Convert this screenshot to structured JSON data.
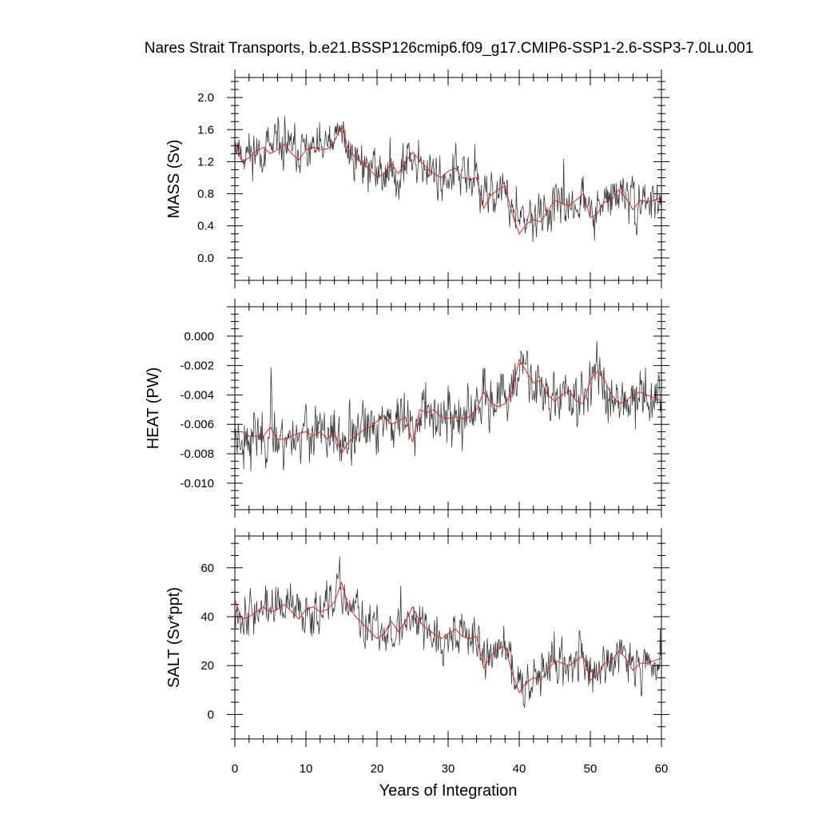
{
  "title": "Nares Strait Transports, b.e21.BSSP126cmip6.f09_g17.CMIP6-SSP1-2.6-SSP3-7.0Lu.001",
  "xlabel": "Years of Integration",
  "colors": {
    "raw": "#3a3a3a",
    "smooth": "#e8201a"
  },
  "chart_data": [
    {
      "type": "line",
      "ylabel": "MASS (Sv)",
      "xlim": [
        0,
        60
      ],
      "ylim": [
        -0.28,
        2.25
      ],
      "x_ticks": [
        0,
        10,
        20,
        30,
        40,
        50,
        60
      ],
      "y_ticks": [
        {
          "v": 0.0,
          "label": "0.0"
        },
        {
          "v": 0.4,
          "label": "0.4"
        },
        {
          "v": 0.8,
          "label": "0.8"
        },
        {
          "v": 1.2,
          "label": "1.2"
        },
        {
          "v": 1.6,
          "label": "1.6"
        },
        {
          "v": 2.0,
          "label": "2.0"
        }
      ],
      "smooth": {
        "x": [
          0,
          1,
          2,
          3,
          4,
          5,
          6,
          7,
          8,
          9,
          10,
          11,
          12,
          13,
          14,
          15,
          16,
          17,
          18,
          19,
          20,
          21,
          22,
          23,
          24,
          25,
          26,
          27,
          28,
          29,
          30,
          31,
          32,
          33,
          34,
          35,
          36,
          37,
          38,
          39,
          40,
          41,
          42,
          43,
          44,
          45,
          46,
          47,
          48,
          49,
          50,
          51,
          52,
          53,
          54,
          55,
          56,
          57,
          58,
          59,
          60
        ],
        "y": [
          1.45,
          1.2,
          1.25,
          1.33,
          1.38,
          1.3,
          1.35,
          1.42,
          1.3,
          1.22,
          1.35,
          1.38,
          1.35,
          1.36,
          1.45,
          1.65,
          1.35,
          1.25,
          1.18,
          1.1,
          1.0,
          1.05,
          1.18,
          1.05,
          1.2,
          1.32,
          1.22,
          1.12,
          1.05,
          1.0,
          1.08,
          1.12,
          1.0,
          0.98,
          1.0,
          0.62,
          0.78,
          0.85,
          0.9,
          0.55,
          0.3,
          0.42,
          0.48,
          0.45,
          0.58,
          0.72,
          0.68,
          0.65,
          0.72,
          0.8,
          0.5,
          0.55,
          0.7,
          0.72,
          0.85,
          0.75,
          0.6,
          0.72,
          0.7,
          0.72,
          0.75
        ]
      },
      "raw": {
        "base": [
          1.45,
          1.3,
          1.3,
          1.35,
          1.35,
          1.35,
          1.35,
          1.4,
          1.35,
          1.3,
          1.35,
          1.35,
          1.35,
          1.38,
          1.45,
          1.55,
          1.35,
          1.25,
          1.2,
          1.12,
          1.05,
          1.05,
          1.12,
          1.08,
          1.15,
          1.25,
          1.2,
          1.12,
          1.05,
          1.0,
          1.05,
          1.08,
          1.0,
          0.98,
          0.95,
          0.7,
          0.8,
          0.85,
          0.85,
          0.6,
          0.4,
          0.45,
          0.5,
          0.5,
          0.58,
          0.68,
          0.65,
          0.65,
          0.7,
          0.75,
          0.55,
          0.58,
          0.68,
          0.72,
          0.82,
          0.75,
          0.65,
          0.7,
          0.7,
          0.72,
          0.75
        ],
        "amp": 0.26,
        "seed": 11
      }
    },
    {
      "type": "line",
      "ylabel": "HEAT (PW)",
      "xlim": [
        0,
        60
      ],
      "ylim": [
        -0.0118,
        0.002
      ],
      "x_ticks": [
        0,
        10,
        20,
        30,
        40,
        50,
        60
      ],
      "y_ticks": [
        {
          "v": -0.01,
          "label": "-0.010"
        },
        {
          "v": -0.008,
          "label": "-0.008"
        },
        {
          "v": -0.006,
          "label": "-0.006"
        },
        {
          "v": -0.004,
          "label": "-0.004"
        },
        {
          "v": -0.002,
          "label": "-0.002"
        },
        {
          "v": 0.0,
          "label": "0.000"
        }
      ],
      "smooth": {
        "x": [
          0,
          1,
          2,
          3,
          4,
          5,
          6,
          7,
          8,
          9,
          10,
          11,
          12,
          13,
          14,
          15,
          16,
          17,
          18,
          19,
          20,
          21,
          22,
          23,
          24,
          25,
          26,
          27,
          28,
          29,
          30,
          31,
          32,
          33,
          34,
          35,
          36,
          37,
          38,
          39,
          40,
          41,
          42,
          43,
          44,
          45,
          46,
          47,
          48,
          49,
          50,
          51,
          52,
          53,
          54,
          55,
          56,
          57,
          58,
          59,
          60
        ],
        "y": [
          -0.0065,
          -0.0065,
          -0.0068,
          -0.0068,
          -0.0068,
          -0.0062,
          -0.007,
          -0.007,
          -0.0068,
          -0.0066,
          -0.0065,
          -0.0068,
          -0.0065,
          -0.007,
          -0.0065,
          -0.008,
          -0.0072,
          -0.0068,
          -0.0064,
          -0.0062,
          -0.0058,
          -0.0054,
          -0.006,
          -0.0058,
          -0.0055,
          -0.0072,
          -0.005,
          -0.0052,
          -0.005,
          -0.0055,
          -0.0056,
          -0.0055,
          -0.0056,
          -0.0055,
          -0.005,
          -0.0038,
          -0.0045,
          -0.0048,
          -0.0046,
          -0.0038,
          -0.0016,
          -0.0024,
          -0.0032,
          -0.003,
          -0.004,
          -0.0044,
          -0.004,
          -0.0037,
          -0.0044,
          -0.0046,
          -0.003,
          -0.0024,
          -0.003,
          -0.004,
          -0.0046,
          -0.0044,
          -0.004,
          -0.0038,
          -0.004,
          -0.0042,
          -0.0044
        ]
      },
      "raw": {
        "base": [
          -0.0066,
          -0.0066,
          -0.0068,
          -0.0068,
          -0.0068,
          -0.0064,
          -0.0068,
          -0.0069,
          -0.0068,
          -0.0066,
          -0.0066,
          -0.0068,
          -0.0066,
          -0.0069,
          -0.0067,
          -0.0076,
          -0.0071,
          -0.0068,
          -0.0064,
          -0.0062,
          -0.0059,
          -0.0056,
          -0.0059,
          -0.0057,
          -0.0056,
          -0.0066,
          -0.0053,
          -0.0053,
          -0.0051,
          -0.0055,
          -0.0056,
          -0.0055,
          -0.0056,
          -0.0055,
          -0.0051,
          -0.0041,
          -0.0045,
          -0.0047,
          -0.0045,
          -0.0039,
          -0.0022,
          -0.0026,
          -0.0032,
          -0.0031,
          -0.0039,
          -0.0043,
          -0.004,
          -0.0038,
          -0.0043,
          -0.0044,
          -0.0032,
          -0.0027,
          -0.0031,
          -0.0039,
          -0.0044,
          -0.0043,
          -0.004,
          -0.0039,
          -0.004,
          -0.0042,
          -0.0043
        ],
        "amp": 0.0017,
        "seed": 23
      }
    },
    {
      "type": "line",
      "ylabel": "SALT (Sv*ppt)",
      "xlim": [
        0,
        60
      ],
      "ylim": [
        -10,
        73
      ],
      "x_ticks": [
        0,
        10,
        20,
        30,
        40,
        50,
        60
      ],
      "y_ticks": [
        {
          "v": 0,
          "label": "0"
        },
        {
          "v": 20,
          "label": "20"
        },
        {
          "v": 40,
          "label": "40"
        },
        {
          "v": 60,
          "label": "60"
        }
      ],
      "smooth": {
        "x": [
          0,
          1,
          2,
          3,
          4,
          5,
          6,
          7,
          8,
          9,
          10,
          11,
          12,
          13,
          14,
          15,
          16,
          17,
          18,
          19,
          20,
          21,
          22,
          23,
          24,
          25,
          26,
          27,
          28,
          29,
          30,
          31,
          32,
          33,
          34,
          35,
          36,
          37,
          38,
          39,
          40,
          41,
          42,
          43,
          44,
          45,
          46,
          47,
          48,
          49,
          50,
          51,
          52,
          53,
          54,
          55,
          56,
          57,
          58,
          59,
          60
        ],
        "y": [
          47,
          39,
          40,
          42,
          44,
          42,
          43,
          45,
          42,
          39,
          43,
          44,
          42,
          43,
          46,
          54,
          44,
          40,
          37,
          34,
          31,
          33,
          38,
          34,
          38,
          44,
          38,
          35,
          33,
          31,
          33,
          35,
          32,
          31,
          32,
          19,
          24,
          27,
          28,
          17,
          9,
          13,
          15,
          14,
          18,
          22,
          21,
          20,
          22,
          24,
          14,
          16,
          21,
          22,
          26,
          23,
          18,
          21,
          21,
          22,
          23
        ]
      },
      "raw": {
        "base": [
          46,
          41,
          41,
          43,
          43,
          43,
          43,
          44,
          43,
          41,
          43,
          43,
          43,
          44,
          46,
          51,
          44,
          41,
          38,
          35,
          33,
          33,
          36,
          34,
          37,
          42,
          38,
          35,
          33,
          31,
          33,
          34,
          32,
          31,
          31,
          22,
          25,
          27,
          27,
          19,
          13,
          14,
          16,
          16,
          18,
          21,
          21,
          20,
          22,
          23,
          17,
          18,
          21,
          22,
          25,
          23,
          20,
          21,
          21,
          22,
          23
        ],
        "amp": 8.5,
        "seed": 37
      }
    }
  ]
}
